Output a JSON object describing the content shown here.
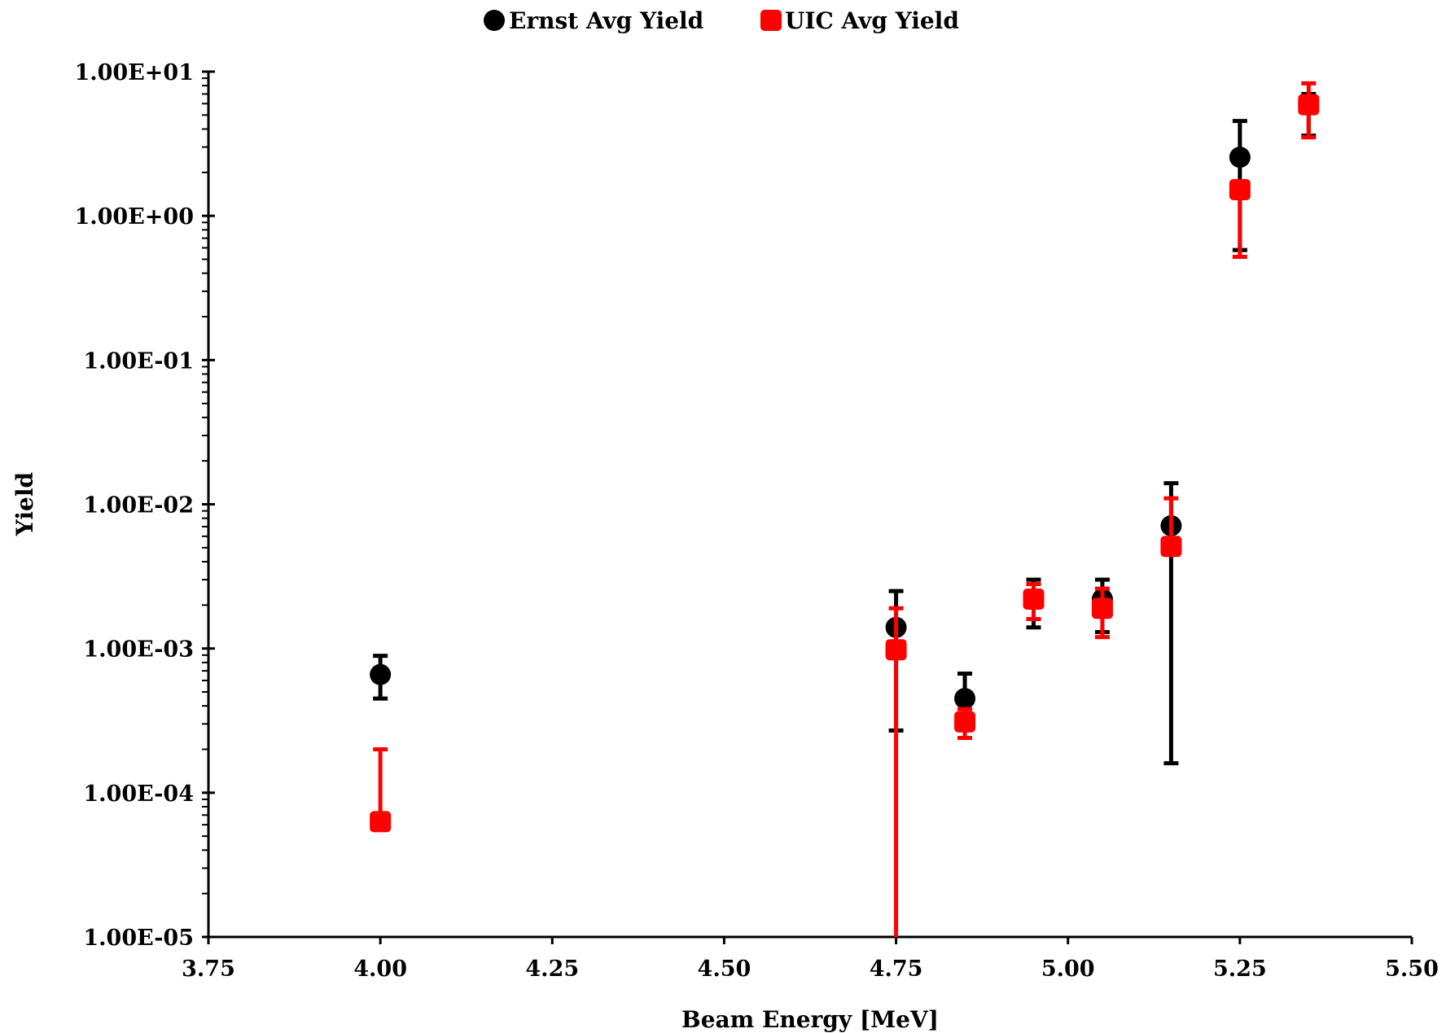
{
  "chart_data": {
    "type": "scatter",
    "title": "",
    "xlabel": "Beam Energy [MeV]",
    "ylabel": "Yield",
    "xlim": [
      3.75,
      5.5
    ],
    "ylim": [
      1e-05,
      10
    ],
    "yscale": "log",
    "grid": false,
    "legend_position": "top-center",
    "x_tick_labels": [
      "3.75",
      "4.00",
      "4.25",
      "4.50",
      "4.75",
      "5.00",
      "5.25",
      "5.50"
    ],
    "y_tick_labels": [
      "1.00E-05",
      "1.00E-04",
      "1.00E-03",
      "1.00E-02",
      "1.00E-01",
      "1.00E+00",
      "1.00E+01"
    ],
    "series": [
      {
        "name": "Ernst Avg Yield",
        "color": "#000000",
        "marker": "circle",
        "points": [
          {
            "x": 4.0,
            "y": 0.00066,
            "err_low": 0.00045,
            "err_high": 0.00089
          },
          {
            "x": 4.75,
            "y": 0.0014,
            "err_low": 0.00027,
            "err_high": 0.0025
          },
          {
            "x": 4.85,
            "y": 0.00045,
            "err_low": 0.00024,
            "err_high": 0.00067
          },
          {
            "x": 4.95,
            "y": 0.0022,
            "err_low": 0.0014,
            "err_high": 0.003
          },
          {
            "x": 5.05,
            "y": 0.0022,
            "err_low": 0.0013,
            "err_high": 0.003
          },
          {
            "x": 5.15,
            "y": 0.0071,
            "err_low": 0.00016,
            "err_high": 0.014
          },
          {
            "x": 5.25,
            "y": 2.55,
            "err_low": 0.58,
            "err_high": 4.55
          },
          {
            "x": 5.35,
            "y": 5.9,
            "err_low": 3.6,
            "err_high": 7.0
          }
        ]
      },
      {
        "name": "UIC Avg Yield",
        "color": "#ff0000",
        "marker": "square",
        "points": [
          {
            "x": 4.0,
            "y": 6.3e-05,
            "err_low": 6.3e-05,
            "err_high": 0.0002
          },
          {
            "x": 4.75,
            "y": 0.00098,
            "err_low": 1e-05,
            "err_high": 0.0019
          },
          {
            "x": 4.85,
            "y": 0.00031,
            "err_low": 0.00024,
            "err_high": 0.00038
          },
          {
            "x": 4.95,
            "y": 0.0022,
            "err_low": 0.0016,
            "err_high": 0.0028
          },
          {
            "x": 5.05,
            "y": 0.0019,
            "err_low": 0.0012,
            "err_high": 0.0026
          },
          {
            "x": 5.15,
            "y": 0.0051,
            "err_low": 0.0051,
            "err_high": 0.011
          },
          {
            "x": 5.25,
            "y": 1.52,
            "err_low": 0.52,
            "err_high": 1.52
          },
          {
            "x": 5.35,
            "y": 5.9,
            "err_low": 3.5,
            "err_high": 8.3
          }
        ]
      }
    ]
  }
}
